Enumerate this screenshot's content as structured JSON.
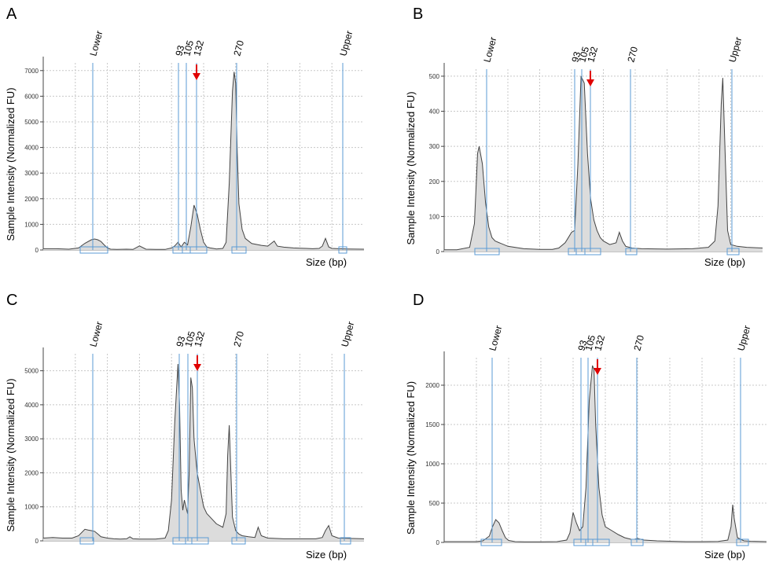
{
  "chart_data": [
    {
      "type": "area",
      "panel": "A",
      "ylabel": "Sample Intensity (Normalized FU)",
      "xlabel": "Size (bp)",
      "ylim": [
        0,
        7300
      ],
      "yticks": [
        0,
        1000,
        2000,
        3000,
        4000,
        5000,
        6000,
        7000
      ],
      "markers": [
        "Lower",
        "93",
        "105",
        "132",
        "270",
        "Upper"
      ],
      "arrow_at": "132",
      "grid": true,
      "x": [
        0,
        4,
        8,
        11,
        13,
        15,
        16,
        17,
        18,
        19,
        20,
        21,
        23,
        26,
        28,
        30,
        32,
        35,
        38,
        40,
        41,
        42,
        43,
        44,
        45,
        46,
        47,
        48,
        49,
        50,
        51,
        52,
        53,
        54,
        56,
        57,
        58,
        59,
        59.5,
        60,
        60.5,
        61,
        62,
        63,
        65,
        68,
        70,
        72,
        73,
        75,
        78,
        80,
        82,
        84,
        86,
        87,
        88,
        89,
        90,
        92,
        95,
        100
      ],
      "y": [
        50,
        50,
        30,
        80,
        260,
        400,
        430,
        400,
        330,
        200,
        80,
        30,
        20,
        30,
        20,
        160,
        30,
        20,
        20,
        80,
        160,
        300,
        120,
        300,
        200,
        900,
        1750,
        1400,
        800,
        300,
        120,
        80,
        60,
        40,
        60,
        300,
        2600,
        6200,
        6950,
        6500,
        3800,
        1800,
        800,
        450,
        250,
        180,
        150,
        350,
        150,
        110,
        80,
        70,
        60,
        50,
        60,
        150,
        450,
        120,
        60,
        50,
        40,
        30
      ]
    },
    {
      "type": "area",
      "panel": "B",
      "ylabel": "Sample Intensity (Normalized FU)",
      "xlabel": "Size (bp)",
      "ylim": [
        0,
        520
      ],
      "yticks": [
        0,
        100,
        200,
        300,
        400,
        500
      ],
      "markers": [
        "Lower",
        "93",
        "105",
        "132",
        "270",
        "Upper"
      ],
      "arrow_at": "132",
      "grid": true,
      "x": [
        0,
        4,
        8,
        9.5,
        10,
        10.5,
        11,
        12,
        13,
        14,
        15,
        16,
        20,
        25,
        30,
        34,
        36,
        38,
        39,
        40,
        41,
        42,
        43,
        44,
        45,
        46,
        47,
        48,
        49,
        50,
        52,
        54,
        55,
        56,
        57,
        59,
        62,
        70,
        78,
        83,
        85,
        86,
        87,
        87.5,
        88,
        89,
        90,
        92,
        95,
        100
      ],
      "y": [
        5,
        5,
        12,
        80,
        180,
        280,
        300,
        250,
        140,
        70,
        40,
        30,
        15,
        8,
        6,
        6,
        10,
        25,
        40,
        55,
        60,
        250,
        500,
        480,
        280,
        150,
        90,
        60,
        40,
        30,
        20,
        25,
        55,
        30,
        15,
        10,
        8,
        7,
        8,
        12,
        30,
        130,
        420,
        495,
        350,
        60,
        20,
        15,
        12,
        10
      ]
    },
    {
      "type": "area",
      "panel": "C",
      "ylabel": "Sample Intensity (Normalized FU)",
      "xlabel": "Size (bp)",
      "ylim": [
        0,
        5500
      ],
      "yticks": [
        0,
        1000,
        2000,
        3000,
        4000,
        5000
      ],
      "markers": [
        "Lower",
        "93",
        "105",
        "132",
        "270",
        "Upper"
      ],
      "arrow_at": "132",
      "grid": true,
      "x": [
        0,
        3,
        6,
        9,
        11,
        13,
        14,
        15,
        16,
        17,
        18,
        20,
        22,
        24,
        26,
        27,
        28,
        30,
        35,
        38,
        39,
        40,
        41,
        42,
        42.5,
        43,
        43.5,
        44,
        45,
        45.5,
        46,
        46.5,
        47,
        48,
        49,
        50,
        51,
        52,
        54,
        56,
        57,
        57.5,
        58,
        58.5,
        59,
        60,
        61,
        62,
        64,
        66,
        67,
        68,
        70,
        75,
        80,
        85,
        87,
        88,
        89,
        90,
        92,
        100
      ],
      "y": [
        80,
        100,
        80,
        80,
        150,
        340,
        320,
        300,
        280,
        200,
        120,
        80,
        60,
        50,
        60,
        120,
        60,
        50,
        50,
        80,
        300,
        1200,
        3500,
        5200,
        4000,
        1500,
        900,
        1200,
        800,
        2000,
        4800,
        4500,
        3000,
        2000,
        1500,
        1000,
        800,
        700,
        500,
        400,
        800,
        2500,
        3400,
        2000,
        700,
        300,
        200,
        150,
        120,
        100,
        400,
        150,
        80,
        60,
        60,
        60,
        100,
        300,
        450,
        150,
        80,
        60
      ]
    },
    {
      "type": "area",
      "panel": "D",
      "ylabel": "Sample Intensity (Normalized FU)",
      "xlabel": "Size (bp)",
      "ylim": [
        0,
        2350
      ],
      "yticks": [
        0,
        500,
        1000,
        1500,
        2000
      ],
      "markers": [
        "Lower",
        "93",
        "105",
        "132",
        "270",
        "Upper"
      ],
      "arrow_at": "132",
      "grid": true,
      "x": [
        0,
        5,
        10,
        12,
        14,
        15,
        16,
        17,
        18,
        19,
        20,
        22,
        25,
        30,
        35,
        38,
        39,
        40,
        41,
        42,
        43,
        44,
        45,
        46,
        46.5,
        47,
        48,
        49,
        50,
        52,
        54,
        56,
        58,
        59,
        60,
        62,
        66,
        70,
        75,
        80,
        85,
        88,
        89,
        89.5,
        90,
        91,
        93,
        95,
        100
      ],
      "y": [
        10,
        10,
        10,
        20,
        80,
        200,
        290,
        250,
        150,
        60,
        25,
        10,
        8,
        8,
        10,
        30,
        120,
        380,
        250,
        150,
        200,
        700,
        1800,
        2250,
        2200,
        1500,
        700,
        350,
        200,
        150,
        100,
        60,
        40,
        40,
        50,
        30,
        20,
        15,
        10,
        10,
        12,
        30,
        200,
        480,
        300,
        60,
        20,
        15,
        10
      ]
    }
  ]
}
